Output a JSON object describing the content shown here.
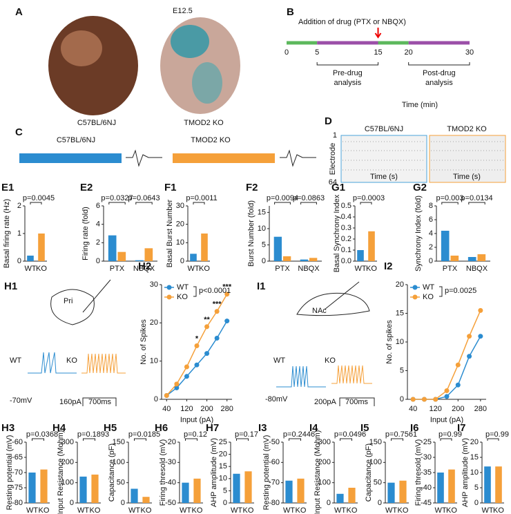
{
  "panels": {
    "A": {
      "label": "A",
      "stage": "E12.5",
      "left": "C57BL/6NJ",
      "right": "TMOD2 KO"
    },
    "B": {
      "label": "B",
      "drug": "Addition of drug (PTX or NBQX)",
      "ticks": [
        0,
        5,
        15,
        20,
        30
      ],
      "pre": [
        "Pre-drug",
        "analysis"
      ],
      "post": [
        "Post-drug",
        "analysis"
      ],
      "axis": "Time (min)"
    },
    "C": {
      "label": "C",
      "left": "C57BL/6NJ",
      "right": "TMOD2 KO"
    },
    "D": {
      "label": "D",
      "left": "C57BL/6NJ",
      "right": "TMOD2 KO",
      "ytop": 1,
      "ybottom": 64,
      "ylabel": "Electrode",
      "xlabel": "Time (s)"
    },
    "H1": {
      "label": "H1",
      "region": "Pri",
      "wt": "WT",
      "ko": "KO",
      "vm": "-70mV",
      "current": "160pA",
      "time": "700ms"
    },
    "I1": {
      "label": "I1",
      "region": "NAc",
      "wt": "WT",
      "ko": "KO",
      "vm": "-80mV",
      "current": "200pA",
      "time": "700ms"
    }
  },
  "chart_data": [
    {
      "type": "bar",
      "label": "E1",
      "ylabel": "Basal firing rate (Hz)",
      "categories": [
        "WT",
        "KO"
      ],
      "values": [
        0.2,
        1.0
      ],
      "colors": [
        "#2b8cd0",
        "#f5a03a"
      ],
      "ylim": [
        0,
        2
      ],
      "yticks": [
        0,
        1,
        2
      ],
      "annotations": [
        "p=0.0045"
      ]
    },
    {
      "type": "bar",
      "label": "E2",
      "ylabel": "Firing rate (fold)",
      "categories": [
        "PTX",
        "NBQX"
      ],
      "series": [
        {
          "color": "#2b8cd0",
          "values": [
            2.8,
            0.1
          ]
        },
        {
          "color": "#f5a03a",
          "values": [
            1.0,
            1.4
          ]
        }
      ],
      "ylim": [
        0,
        6
      ],
      "yticks": [
        0,
        2,
        4,
        6
      ],
      "annotations": [
        "p=0.0327",
        "p=0.0643"
      ]
    },
    {
      "type": "bar",
      "label": "F1",
      "ylabel": "Basal Burst Number",
      "categories": [
        "WT",
        "KO"
      ],
      "values": [
        4,
        15
      ],
      "colors": [
        "#2b8cd0",
        "#f5a03a"
      ],
      "ylim": [
        0,
        30
      ],
      "yticks": [
        0,
        10,
        20,
        30
      ],
      "annotations": [
        "p=0.0011"
      ]
    },
    {
      "type": "bar",
      "label": "F2",
      "ylabel": "Burst Number (fold)",
      "categories": [
        "PTX",
        "NBQX"
      ],
      "series": [
        {
          "color": "#2b8cd0",
          "values": [
            7.5,
            0.5
          ]
        },
        {
          "color": "#f5a03a",
          "values": [
            1.5,
            1.0
          ]
        }
      ],
      "ylim": [
        0,
        17
      ],
      "yticks": [
        0,
        5,
        10,
        15
      ],
      "annotations": [
        "p=0.0094",
        "p=0.0863"
      ]
    },
    {
      "type": "bar",
      "label": "G1",
      "ylabel": "Basal Synchrony Index",
      "categories": [
        "WT",
        "KO"
      ],
      "values": [
        0.1,
        0.27
      ],
      "colors": [
        "#2b8cd0",
        "#f5a03a"
      ],
      "ylim": [
        0,
        0.5
      ],
      "yticks": [
        {
          "value": 0,
          "label": "0.0"
        },
        0.1,
        0.2,
        0.3,
        0.4,
        0.5
      ],
      "annotations": [
        "p=0.0003"
      ]
    },
    {
      "type": "bar",
      "label": "G2",
      "ylabel": "Synchrony Index (fold)",
      "categories": [
        "PTX",
        "NBQX"
      ],
      "series": [
        {
          "color": "#2b8cd0",
          "values": [
            4.4,
            0.6
          ]
        },
        {
          "color": "#f5a03a",
          "values": [
            0.8,
            1.0
          ]
        }
      ],
      "ylim": [
        0,
        8
      ],
      "yticks": [
        0,
        2,
        4,
        6,
        8
      ],
      "annotations": [
        "p=0.003",
        "p=0.0134"
      ]
    },
    {
      "type": "line",
      "label": "H2",
      "ylabel": "No. of Spikes",
      "xlabel": "Input (pA)",
      "x": [
        40,
        80,
        120,
        160,
        200,
        240,
        280
      ],
      "series": [
        {
          "name": "WT",
          "color": "#2b8cd0",
          "values": [
            1,
            3,
            6,
            9,
            12,
            16,
            20.5
          ]
        },
        {
          "name": "KO",
          "color": "#f5a03a",
          "values": [
            1,
            4,
            8.5,
            14,
            19,
            23,
            27.5
          ]
        }
      ],
      "xlim": [
        20,
        300
      ],
      "xticks": [
        40,
        120,
        200,
        280
      ],
      "ylim": [
        0,
        30
      ],
      "yticks": [
        0,
        10,
        20,
        30
      ],
      "pvalue": "p<0.0001",
      "stars": [
        {
          "x": 160,
          "text": "*"
        },
        {
          "x": 200,
          "text": "**"
        },
        {
          "x": 240,
          "text": "***"
        },
        {
          "x": 280,
          "text": "***"
        }
      ]
    },
    {
      "type": "line",
      "label": "I2",
      "ylabel": "No. of spikes",
      "xlabel": "Input (pA)",
      "x": [
        40,
        80,
        120,
        160,
        200,
        240,
        280
      ],
      "series": [
        {
          "name": "WT",
          "color": "#2b8cd0",
          "values": [
            0,
            0,
            0,
            0.5,
            2.5,
            7.5,
            11
          ]
        },
        {
          "name": "KO",
          "color": "#f5a03a",
          "values": [
            0,
            0,
            0,
            1.5,
            6,
            11,
            15.5
          ]
        }
      ],
      "xlim": [
        20,
        300
      ],
      "xticks": [
        40,
        120,
        200,
        280
      ],
      "ylim": [
        0,
        20
      ],
      "yticks": [
        0,
        5,
        10,
        15,
        20
      ],
      "pvalue": "p=0.0025",
      "stars": []
    },
    {
      "type": "bar",
      "label": "H3",
      "ylabel": "Resting potential (mV)",
      "categories": [
        "WT",
        "KO"
      ],
      "values": [
        -70,
        -69
      ],
      "colors": [
        "#2b8cd0",
        "#f5a03a"
      ],
      "ylim": [
        -80,
        -60
      ],
      "yticks": [
        -80,
        -75,
        -70,
        -65,
        -60
      ],
      "annotations": [
        "p=0.0368"
      ]
    },
    {
      "type": "bar",
      "label": "H4",
      "ylabel": "Input Resistance (Mohm)",
      "categories": [
        "WT",
        "KO"
      ],
      "values": [
        130,
        140
      ],
      "colors": [
        "#2b8cd0",
        "#f5a03a"
      ],
      "ylim": [
        0,
        300
      ],
      "yticks": [
        0,
        100,
        200,
        300
      ],
      "annotations": [
        "p=0.1893"
      ]
    },
    {
      "type": "bar",
      "label": "H5",
      "ylabel": "Capacitance (pF)",
      "categories": [
        "WT",
        "KO"
      ],
      "values": [
        35,
        15
      ],
      "colors": [
        "#2b8cd0",
        "#f5a03a"
      ],
      "ylim": [
        0,
        150
      ],
      "yticks": [
        0,
        50,
        100,
        150
      ],
      "annotations": [
        "p=0.0185"
      ]
    },
    {
      "type": "bar",
      "label": "H6",
      "ylabel": "Firing thresold (mV)",
      "categories": [
        "WT",
        "KO"
      ],
      "values": [
        -40,
        -38
      ],
      "colors": [
        "#2b8cd0",
        "#f5a03a"
      ],
      "ylim": [
        -50,
        -20
      ],
      "yticks": [
        -50,
        -40,
        -30,
        -20
      ],
      "annotations": [
        "p=0.12"
      ]
    },
    {
      "type": "bar",
      "label": "H7",
      "ylabel": "AHP amplitude (mV)",
      "categories": [
        "WT",
        "KO"
      ],
      "values": [
        12,
        13
      ],
      "colors": [
        "#2b8cd0",
        "#f5a03a"
      ],
      "ylim": [
        0,
        25
      ],
      "yticks": [
        0,
        5,
        10,
        15,
        20,
        25
      ],
      "annotations": [
        "p=0.17"
      ]
    },
    {
      "type": "bar",
      "label": "I3",
      "ylabel": "Resting potential (mV)",
      "categories": [
        "WT",
        "KO"
      ],
      "values": [
        -69,
        -68
      ],
      "colors": [
        "#2b8cd0",
        "#f5a03a"
      ],
      "ylim": [
        -80,
        -50
      ],
      "yticks": [
        -80,
        -70,
        -60,
        -50
      ],
      "annotations": [
        "p=0.2446"
      ]
    },
    {
      "type": "bar",
      "label": "I4",
      "ylabel": "Input Resistance (Mohm)",
      "categories": [
        "WT",
        "KO"
      ],
      "values": [
        45,
        75
      ],
      "colors": [
        "#2b8cd0",
        "#f5a03a"
      ],
      "ylim": [
        0,
        300
      ],
      "yticks": [
        0,
        100,
        200,
        300
      ],
      "annotations": [
        "p=0.0496"
      ]
    },
    {
      "type": "bar",
      "label": "I5",
      "ylabel": "Capacitance (pF)",
      "categories": [
        "WT",
        "KO"
      ],
      "values": [
        50,
        55
      ],
      "colors": [
        "#2b8cd0",
        "#f5a03a"
      ],
      "ylim": [
        0,
        150
      ],
      "yticks": [
        0,
        50,
        100,
        150
      ],
      "annotations": [
        "p=0.7561"
      ]
    },
    {
      "type": "bar",
      "label": "I6",
      "ylabel": "Firing thresold (mV)",
      "categories": [
        "WT",
        "KO"
      ],
      "values": [
        -35,
        -34
      ],
      "colors": [
        "#2b8cd0",
        "#f5a03a"
      ],
      "ylim": [
        -45,
        -25
      ],
      "yticks": [
        -45,
        -40,
        -35,
        -30,
        -25
      ],
      "annotations": [
        "p=0.99"
      ]
    },
    {
      "type": "bar",
      "label": "I7",
      "ylabel": "AHP amplitude (mV)",
      "categories": [
        "WT",
        "KO"
      ],
      "values": [
        12,
        12
      ],
      "colors": [
        "#2b8cd0",
        "#f5a03a"
      ],
      "ylim": [
        0,
        20
      ],
      "yticks": [
        0,
        5,
        10,
        15,
        20
      ],
      "annotations": [
        "p=0.99"
      ]
    }
  ]
}
